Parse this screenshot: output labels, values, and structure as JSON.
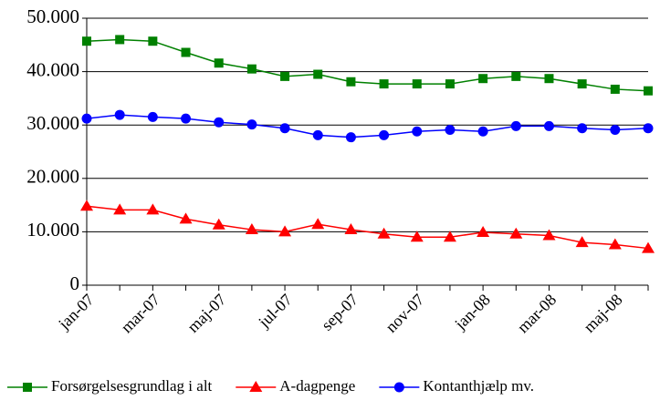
{
  "chart_data": {
    "type": "line",
    "categories": [
      "jan-07",
      null,
      "mar-07",
      null,
      "maj-07",
      null,
      "jul-07",
      null,
      "sep-07",
      null,
      "nov-07",
      null,
      "jan-08",
      null,
      "mar-08",
      null,
      "maj-08",
      null
    ],
    "series": [
      {
        "name": "Forsørgelsesgrundlag i alt",
        "color": "#008000",
        "marker": "square",
        "values": [
          45700,
          46000,
          45700,
          43600,
          41600,
          40500,
          39100,
          39500,
          38100,
          37700,
          37700,
          37700,
          38700,
          39100,
          38700,
          37700,
          36700,
          36400
        ]
      },
      {
        "name": "A-dagpenge",
        "color": "#ff0000",
        "marker": "triangle",
        "values": [
          14800,
          14100,
          14100,
          12400,
          11300,
          10400,
          10000,
          11400,
          10400,
          9600,
          9000,
          9000,
          9900,
          9600,
          9300,
          8000,
          7600,
          6900
        ]
      },
      {
        "name": "Kontanthjælp mv.",
        "color": "#0000ff",
        "marker": "circle",
        "values": [
          31200,
          31900,
          31500,
          31200,
          30500,
          30100,
          29400,
          28100,
          27700,
          28100,
          28800,
          29100,
          28800,
          29800,
          29800,
          29400,
          29100,
          29400
        ]
      }
    ],
    "ylim": [
      0,
      50000
    ],
    "yticks": [
      0,
      {
        "value": 10000,
        "label": "10.000"
      },
      {
        "value": 20000,
        "label": "20.000"
      },
      {
        "value": 30000,
        "label": "30.000"
      },
      {
        "value": 40000,
        "label": "40.000"
      },
      {
        "value": 50000,
        "label": "50.000"
      }
    ],
    "grid": true,
    "legend": "bottom"
  }
}
